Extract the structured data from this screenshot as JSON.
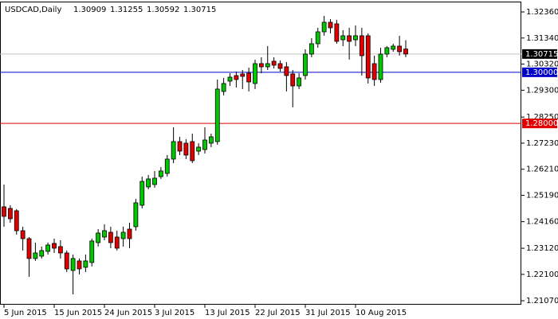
{
  "chart_data": {
    "type": "candlestick",
    "title": "USDCAD,Daily",
    "categories": [
      "5 Jun 2015",
      null,
      null,
      null,
      null,
      null,
      null,
      null,
      "15 Jun 2015",
      null,
      null,
      null,
      null,
      null,
      null,
      null,
      "24 Jun 2015",
      null,
      null,
      null,
      null,
      null,
      null,
      null,
      "3 Jul 2015",
      null,
      null,
      null,
      null,
      null,
      null,
      null,
      "13 Jul 2015",
      null,
      null,
      null,
      null,
      null,
      null,
      null,
      "22 Jul 2015",
      null,
      null,
      null,
      null,
      null,
      null,
      null,
      "31 Jul 2015",
      null,
      null,
      null,
      null,
      null,
      null,
      null,
      "10 Aug 2015",
      null,
      null,
      null,
      null,
      null,
      null,
      null,
      null
    ],
    "open": [
      1.24741,
      1.24679,
      1.24586,
      1.23808,
      1.23497,
      1.2272,
      1.22813,
      1.22999,
      1.2331,
      1.23186,
      1.22937,
      1.22253,
      1.22626,
      1.22377,
      1.22564,
      1.23342,
      1.23559,
      1.23746,
      1.23559,
      1.23497,
      1.2387,
      1.23964,
      1.24803,
      1.25519,
      1.25612,
      1.25923,
      1.26047,
      1.26607,
      1.27291,
      1.27229,
      1.27291,
      1.26918,
      1.2698,
      1.27229,
      1.27291,
      1.29251,
      1.29655,
      1.29873,
      1.29935,
      1.29966,
      1.29562,
      1.30339,
      1.30215,
      1.30432,
      1.30339,
      1.30215,
      1.29935,
      1.29468,
      1.29873,
      1.30712,
      1.31117,
      1.31583,
      1.31956,
      1.31894,
      1.31272,
      1.31428,
      1.31272,
      1.31428,
      1.31428,
      1.30339,
      1.29717,
      1.30712,
      1.30899,
      1.31023,
      1.30909
    ],
    "high": [
      1.25612,
      1.24803,
      1.24648,
      1.23964,
      1.23559,
      1.23342,
      1.23186,
      1.23342,
      1.23497,
      1.23435,
      1.23031,
      1.22875,
      1.2272,
      1.22875,
      1.23497,
      1.2387,
      1.24057,
      1.23964,
      1.23808,
      1.23964,
      1.24119,
      1.25052,
      1.25923,
      1.25985,
      1.26141,
      1.26296,
      1.26763,
      1.27851,
      1.27478,
      1.27385,
      1.27602,
      1.27229,
      1.27851,
      1.27602,
      1.29717,
      1.29779,
      1.29966,
      1.30028,
      1.3009,
      1.30184,
      1.30495,
      1.30588,
      1.31023,
      1.30588,
      1.30463,
      1.30401,
      1.3009,
      1.29966,
      1.30899,
      1.31334,
      1.31739,
      1.32205,
      1.32081,
      1.3205,
      1.31645,
      1.31739,
      1.31832,
      1.31739,
      1.31521,
      1.3065,
      1.30961,
      1.31023,
      1.31117,
      1.31428,
      1.31255
    ],
    "low": [
      1.23964,
      1.24119,
      1.23653,
      1.23031,
      1.22004,
      1.22626,
      1.2272,
      1.22875,
      1.22937,
      1.2272,
      1.22191,
      1.2132,
      1.22098,
      1.22191,
      1.22409,
      1.23186,
      1.23435,
      1.23124,
      1.23031,
      1.23186,
      1.23124,
      1.23808,
      1.24679,
      1.25425,
      1.25487,
      1.2583,
      1.25923,
      1.26452,
      1.26763,
      1.26607,
      1.26452,
      1.26763,
      1.26825,
      1.27074,
      1.27167,
      1.29095,
      1.29468,
      1.29406,
      1.29344,
      1.29251,
      1.29344,
      1.29966,
      1.3009,
      1.30152,
      1.30028,
      1.29251,
      1.28629,
      1.29344,
      1.29717,
      1.30588,
      1.30961,
      1.31428,
      1.31521,
      1.31117,
      1.31023,
      1.30495,
      1.31023,
      1.29873,
      1.29562,
      1.29468,
      1.29593,
      1.30588,
      1.30806,
      1.3065,
      1.30592
    ],
    "close": [
      1.24368,
      1.24275,
      1.23808,
      1.23497,
      1.2272,
      1.22937,
      1.23031,
      1.23248,
      1.23124,
      1.22937,
      1.22315,
      1.2272,
      1.22315,
      1.22626,
      1.23404,
      1.23715,
      1.23808,
      1.23342,
      1.23124,
      1.23746,
      1.23497,
      1.24897,
      1.25736,
      1.2583,
      1.25861,
      1.26141,
      1.26607,
      1.27291,
      1.26918,
      1.26763,
      1.26545,
      1.27074,
      1.27353,
      1.27478,
      1.29344,
      1.29562,
      1.2981,
      1.29717,
      1.29841,
      1.29624,
      1.30339,
      1.30215,
      1.30339,
      1.30277,
      1.30152,
      1.29873,
      1.29468,
      1.29779,
      1.30712,
      1.31117,
      1.31583,
      1.31956,
      1.31739,
      1.3121,
      1.31428,
      1.3121,
      1.31428,
      1.3065,
      1.29779,
      1.29717,
      1.30712,
      1.30961,
      1.31023,
      1.30806,
      1.30715
    ],
    "up_color": "#00c800",
    "down_color": "#e00000",
    "ylim": [
      1.20915,
      1.32764
    ],
    "yticks": [
      {
        "value": 1.2107,
        "label": "1.21070"
      },
      {
        "value": 1.221,
        "label": "1.22100"
      },
      {
        "value": 1.2312,
        "label": "1.23120"
      },
      {
        "value": 1.2416,
        "label": "1.24160"
      },
      {
        "value": 1.2519,
        "label": "1.25190"
      },
      {
        "value": 1.2621,
        "label": "1.26210"
      },
      {
        "value": 1.2723,
        "label": "1.27230"
      },
      {
        "value": 1.2825,
        "label": "1.28250"
      },
      {
        "value": 1.293,
        "label": "1.29300"
      },
      {
        "value": 1.3032,
        "label": "1.30320"
      },
      {
        "value": 1.3134,
        "label": "1.31340"
      },
      {
        "value": 1.3236,
        "label": "1.32360"
      }
    ],
    "hlines": [
      {
        "value": 1.3,
        "label": "1.30000",
        "color": "#0000c8"
      },
      {
        "value": 1.28,
        "label": "1.28000",
        "color": "#e00000"
      }
    ]
  }
}
